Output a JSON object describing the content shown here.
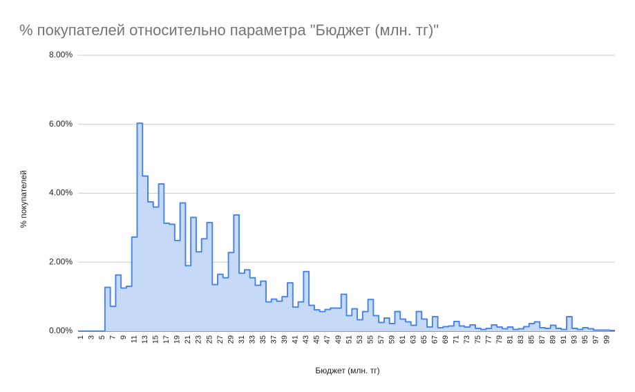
{
  "chart_data": {
    "type": "area",
    "step": true,
    "title": "% покупателей относительно параметра \"Бюджет (млн. тг)\"",
    "x_label": "Бюджет (млн. тг)",
    "y_label": "% покупателей",
    "categories": [
      "1",
      null,
      "3",
      null,
      "5",
      null,
      "7",
      null,
      "9",
      null,
      "11",
      null,
      "13",
      null,
      "15",
      null,
      "17",
      null,
      "19",
      null,
      "21",
      null,
      "23",
      null,
      "25",
      null,
      "27",
      null,
      "29",
      null,
      "31",
      null,
      "33",
      null,
      "35",
      null,
      "37",
      null,
      "39",
      null,
      "41",
      null,
      "43",
      null,
      "45",
      null,
      "47",
      null,
      "49",
      null,
      "51",
      null,
      "53",
      null,
      "55",
      null,
      "57",
      null,
      "59",
      null,
      "61",
      null,
      "63",
      null,
      "65",
      null,
      "67",
      null,
      "69",
      null,
      "71",
      null,
      "73",
      null,
      "75",
      null,
      "77",
      null,
      "79",
      null,
      "81",
      null,
      "83",
      null,
      "85",
      null,
      "87",
      null,
      "89",
      null,
      "91",
      null,
      "93",
      null,
      "95",
      null,
      "97",
      null,
      "99",
      null
    ],
    "values": [
      0,
      0,
      0,
      0,
      0,
      1.27,
      0.72,
      1.63,
      1.25,
      1.3,
      2.73,
      6.03,
      4.5,
      3.75,
      3.6,
      4.27,
      3.13,
      3.1,
      2.63,
      3.72,
      1.9,
      3.3,
      2.3,
      2.68,
      3.15,
      1.35,
      1.65,
      1.55,
      2.28,
      3.37,
      1.68,
      1.78,
      1.55,
      1.33,
      1.45,
      0.85,
      0.93,
      0.87,
      1.0,
      1.4,
      0.7,
      0.85,
      1.73,
      0.75,
      0.62,
      0.57,
      0.63,
      0.67,
      0.67,
      1.07,
      0.45,
      0.65,
      0.33,
      0.57,
      0.92,
      0.45,
      0.25,
      0.38,
      0.22,
      0.57,
      0.35,
      0.27,
      0.17,
      0.57,
      0.35,
      0.12,
      0.42,
      0.1,
      0.13,
      0.15,
      0.28,
      0.15,
      0.12,
      0.18,
      0.08,
      0.05,
      0.08,
      0.18,
      0.12,
      0.07,
      0.12,
      0.05,
      0.07,
      0.13,
      0.22,
      0.27,
      0.1,
      0.08,
      0.17,
      0.08,
      0.05,
      0.42,
      0.08,
      0.05,
      0.1,
      0.07,
      0.03,
      0.03,
      0.03,
      0.02
    ],
    "color": "#4a86e8",
    "fill_color": "#c6d9f7",
    "ylim": [
      0,
      8
    ],
    "yticks": [
      {
        "value": 0,
        "label": "0.00%"
      },
      {
        "value": 2,
        "label": "2.00%"
      },
      {
        "value": 4,
        "label": "4.00%"
      },
      {
        "value": 6,
        "label": "6.00%"
      },
      {
        "value": 8,
        "label": "8.00%"
      }
    ],
    "grid": true
  }
}
